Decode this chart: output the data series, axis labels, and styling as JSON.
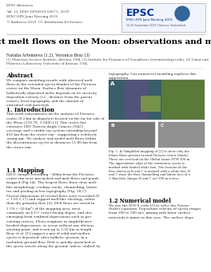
{
  "title": "Impact melt flows on the Moon: observations and models",
  "header_line1": "EPSC Abstracts",
  "header_line2": "Vol. 13, EPSC-DPS2019-1067-1, 2019",
  "header_line3": "EPSC-DPS Joint Meeting 2019",
  "header_line4": "© Author(s) 2019. CC Attribution 4.0 license.",
  "authors": "Natalia Artemieva (1,2), Veronica Bray (3)",
  "affiliations": "(1) Planetary Science Institute, Arizona, USA, (2) Institute for Dynamics of Geospheres (artemieva@psi.edu), (3) Lunar and\nPlanetary Laboratory, University of Arizona, USA.",
  "abstract_title": "Abstract",
  "abstract_text": "We compare modeling results with observed melt\nflows in the extended ejecta blanket of the Pierazzo\ncrater on the Moon. Surface flow dynamics of\nballistically deposited melts depends on its viscosity,\ndeposition velocity (i.e., distance from the parent\ncrater), local topography, and the amount of\nentrained cold materials.",
  "abstract_text2": "topography. Our numerical modeling explores this\nsupposition.",
  "intro_title": "1. Introduction",
  "intro_text": "This work concentrates on the analysis of Pierazzo\ncrater (9.2 km in diameter) located on the far far side of\nthe Moon (259.7E, 3.20N) [1]. This crater has\nextensive LRO Narrow Angle Camera (NAC)\ncoverage and a visible ray system extending beyond\n450 km from the crater rim - suggesting a relatively\nyoung age. We analyse and model melt flows within\nthe discontinuous ejecta at distances 11-80 km from\nthe crater rim.",
  "mapping_title": "1.1 Mapping",
  "mapping_text": "LROC images extending ~40km from the Pierazzo\ncrater rim were mosaicked and melt flows and ponds\nmapped (Fig 1A). The largest flows show clear melt-\nlike morphology: cooling cracks, channelling, lobate\ntoe and pooling in low topography (Fig. 1B,C).\nFractal dimensions of several flows were recorded (D\n= 1.05-1.17) and support melt-like rheology, rather\nthan dry granular flow [2]. Melt flows are noted in\n1.5% (~50 km²) of the mapping area, most\ncommonly on 4-15° crater-facing slopes, and also\nemerging from confined depressions such as pre-\nexisting craters. Flows originate in amphitheater-\nheaded depressions, or occur without any obvious\nstarting point, and reach up to 2.56 km in length.\nBray et al. [1] suggest a mix of solid and molten\nejecta is deposited; after ballistic ejection, in a\nturbulent ground flow. Melt is quickly quenched as\nthe ejecta travels along the ground, unless 'stalled' by",
  "numerical_title": "1.2 Numerical model",
  "numerical_text": "We use the SOV-S code [3] to solve the Navier-\nStokes equation. Deposition velocity of ejecta ranges\nfrom 100 to 300 m/s, mixing with lunar surface\nmaterials is minor in this case. The surface slope",
  "fig_caption": "Fig. 1: A) Simplified mapping of [1] to show only the\nlobate flows present around Pierazzo crater (black).\nThese are over-laid on the Global Lunar DTM 100 m.\nThe approximate edge of the continuous ejecta is\nmarked with dashed white line. The location of the\nflow shown in B and C is marked with a white box. B\nand C show the flow channelling and lobate toes of a\n1.5km flow. Images B and C are 300 m across.",
  "bg_color": "#ffffff",
  "header_color": "#222222",
  "title_color": "#000000",
  "section_color": "#000000",
  "body_color": "#333333",
  "epsc_blue": "#003399"
}
